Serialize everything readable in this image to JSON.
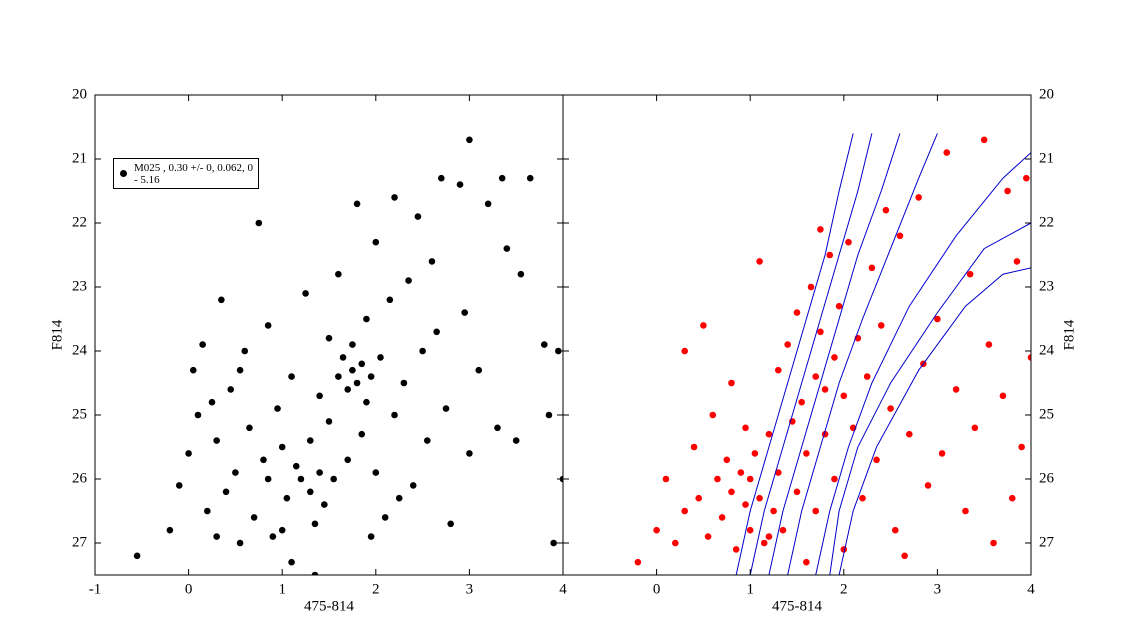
{
  "chart_data": [
    {
      "type": "scatter",
      "xlabel": "475-814",
      "ylabel": "F814",
      "xlim": [
        -1,
        4
      ],
      "ylim": [
        27.5,
        20
      ],
      "xticks": [
        -1,
        0,
        1,
        2,
        3,
        4
      ],
      "yticks": [
        20,
        21,
        22,
        23,
        24,
        25,
        26,
        27
      ],
      "series": [
        {
          "name": "M025  , 0.30 +/- 0, 0.062, 0 - 5.16",
          "color": "#000000",
          "x": [
            -0.55,
            -0.2,
            -0.1,
            0.0,
            0.05,
            0.1,
            0.15,
            0.2,
            0.25,
            0.3,
            0.35,
            0.4,
            0.45,
            0.5,
            0.55,
            0.6,
            0.65,
            0.7,
            0.75,
            0.8,
            0.85,
            0.9,
            0.95,
            1.0,
            1.05,
            1.1,
            1.1,
            1.15,
            1.2,
            1.25,
            1.3,
            1.3,
            1.35,
            1.4,
            1.4,
            1.45,
            1.5,
            1.5,
            1.55,
            1.6,
            1.6,
            1.65,
            1.7,
            1.7,
            1.75,
            1.75,
            1.8,
            1.8,
            1.85,
            1.85,
            1.9,
            1.9,
            1.95,
            2.0,
            2.0,
            2.05,
            2.1,
            2.15,
            2.2,
            2.2,
            2.3,
            2.35,
            2.4,
            2.45,
            2.5,
            2.55,
            2.6,
            2.65,
            2.7,
            2.75,
            2.8,
            2.9,
            2.95,
            3.0,
            3.0,
            3.1,
            3.2,
            3.3,
            3.35,
            3.4,
            3.5,
            3.55,
            3.65,
            3.8,
            3.85,
            3.9,
            3.95,
            4.0,
            1.35,
            0.55,
            1.0,
            0.85,
            1.95,
            2.25,
            0.3
          ],
          "values": [
            27.2,
            26.8,
            26.1,
            25.6,
            24.3,
            25.0,
            23.9,
            26.5,
            24.8,
            25.4,
            23.2,
            26.2,
            24.6,
            25.9,
            27.0,
            24.0,
            25.2,
            26.6,
            22.0,
            25.7,
            23.6,
            26.9,
            24.9,
            25.5,
            26.3,
            24.4,
            27.3,
            25.8,
            26.0,
            23.1,
            26.2,
            25.4,
            26.7,
            24.7,
            25.9,
            26.4,
            23.8,
            25.1,
            26.0,
            24.4,
            22.8,
            24.1,
            24.6,
            25.7,
            23.9,
            24.3,
            24.5,
            21.7,
            24.2,
            25.3,
            24.8,
            23.5,
            24.4,
            22.3,
            25.9,
            24.1,
            26.6,
            23.2,
            21.6,
            25.0,
            24.5,
            22.9,
            26.1,
            21.9,
            24.0,
            25.4,
            22.6,
            23.7,
            21.3,
            24.9,
            26.7,
            21.4,
            23.4,
            20.7,
            25.6,
            24.3,
            21.7,
            25.2,
            21.3,
            22.4,
            25.4,
            22.8,
            21.3,
            23.9,
            25.0,
            27.0,
            24.0,
            26.0,
            27.5,
            24.3,
            26.8,
            26.0,
            26.9,
            26.3,
            26.9
          ]
        }
      ]
    },
    {
      "type": "scatter",
      "xlabel": "475-814",
      "ylabel": "F814",
      "xlim": [
        -1,
        4
      ],
      "ylim": [
        27.5,
        20
      ],
      "xticks": [
        0,
        1,
        2,
        3,
        4
      ],
      "yticks": [
        20,
        21,
        22,
        23,
        24,
        25,
        26,
        27
      ],
      "series": [
        {
          "color": "#ff0000",
          "x": [
            -0.2,
            0.0,
            0.1,
            0.2,
            0.3,
            0.4,
            0.45,
            0.5,
            0.55,
            0.6,
            0.65,
            0.7,
            0.75,
            0.8,
            0.8,
            0.85,
            0.9,
            0.95,
            1.0,
            1.0,
            1.05,
            1.1,
            1.1,
            1.15,
            1.2,
            1.25,
            1.3,
            1.3,
            1.35,
            1.4,
            1.45,
            1.5,
            1.5,
            1.55,
            1.6,
            1.65,
            1.7,
            1.7,
            1.75,
            1.8,
            1.8,
            1.85,
            1.9,
            1.9,
            1.95,
            2.0,
            2.05,
            2.1,
            2.15,
            2.2,
            2.25,
            2.3,
            2.35,
            2.4,
            2.5,
            2.55,
            2.6,
            2.7,
            2.8,
            2.85,
            2.9,
            3.0,
            3.05,
            3.1,
            3.2,
            3.3,
            3.35,
            3.4,
            3.5,
            3.55,
            3.6,
            3.7,
            3.75,
            3.8,
            3.85,
            3.9,
            3.95,
            4.0,
            1.2,
            0.95,
            1.6,
            2.0,
            1.75,
            2.45,
            2.65,
            0.3
          ],
          "values": [
            27.3,
            26.8,
            26.0,
            27.0,
            24.0,
            25.5,
            26.3,
            23.6,
            26.9,
            25.0,
            26.0,
            26.6,
            25.7,
            24.5,
            26.2,
            27.1,
            25.9,
            26.4,
            26.0,
            26.8,
            25.6,
            26.3,
            22.6,
            27.0,
            25.3,
            26.5,
            24.3,
            25.9,
            26.8,
            23.9,
            25.1,
            26.2,
            23.4,
            24.8,
            25.6,
            23.0,
            24.4,
            26.5,
            23.7,
            24.6,
            25.3,
            22.5,
            24.1,
            26.0,
            23.3,
            24.7,
            22.3,
            25.2,
            23.8,
            26.3,
            24.4,
            22.7,
            25.7,
            23.6,
            24.9,
            26.8,
            22.2,
            25.3,
            21.6,
            24.2,
            26.1,
            23.5,
            25.6,
            20.9,
            24.6,
            26.5,
            22.8,
            25.2,
            20.7,
            23.9,
            27.0,
            24.7,
            21.5,
            26.3,
            22.6,
            25.5,
            21.3,
            24.1,
            26.9,
            25.2,
            27.3,
            27.1,
            22.1,
            21.8,
            27.2,
            26.5
          ]
        },
        {
          "type": "line",
          "color": "#0000cc",
          "x": [
            0.85,
            1.0,
            1.2,
            1.4,
            1.6,
            1.8,
            1.95,
            2.1
          ],
          "values": [
            27.5,
            26.5,
            25.5,
            24.5,
            23.5,
            22.5,
            21.5,
            20.6
          ]
        },
        {
          "type": "line",
          "color": "#0000cc",
          "x": [
            1.0,
            1.15,
            1.35,
            1.55,
            1.75,
            1.95,
            2.15,
            2.3
          ],
          "values": [
            27.5,
            26.5,
            25.5,
            24.5,
            23.5,
            22.5,
            21.5,
            20.6
          ]
        },
        {
          "type": "line",
          "color": "#0000cc",
          "x": [
            1.2,
            1.35,
            1.55,
            1.75,
            1.95,
            2.15,
            2.4,
            2.6
          ],
          "values": [
            27.5,
            26.5,
            25.5,
            24.5,
            23.5,
            22.5,
            21.5,
            20.6
          ]
        },
        {
          "type": "line",
          "color": "#0000cc",
          "x": [
            1.4,
            1.55,
            1.75,
            1.95,
            2.2,
            2.5,
            2.8,
            3.0
          ],
          "values": [
            27.5,
            26.5,
            25.5,
            24.5,
            23.5,
            22.4,
            21.3,
            20.6
          ]
        },
        {
          "type": "line",
          "color": "#0000cc",
          "x": [
            1.7,
            1.85,
            2.05,
            2.3,
            2.7,
            3.2,
            3.7,
            4.0
          ],
          "values": [
            27.5,
            26.5,
            25.5,
            24.5,
            23.3,
            22.2,
            21.3,
            20.9
          ]
        },
        {
          "type": "line",
          "color": "#0000cc",
          "x": [
            1.85,
            1.95,
            2.15,
            2.5,
            3.0,
            3.5,
            4.0
          ],
          "values": [
            27.5,
            26.5,
            25.5,
            24.5,
            23.4,
            22.4,
            22.0
          ]
        },
        {
          "type": "line",
          "color": "#0000cc",
          "x": [
            1.95,
            2.1,
            2.35,
            2.8,
            3.3,
            3.7,
            4.0
          ],
          "values": [
            27.5,
            26.5,
            25.5,
            24.3,
            23.3,
            22.8,
            22.7
          ]
        }
      ]
    }
  ]
}
